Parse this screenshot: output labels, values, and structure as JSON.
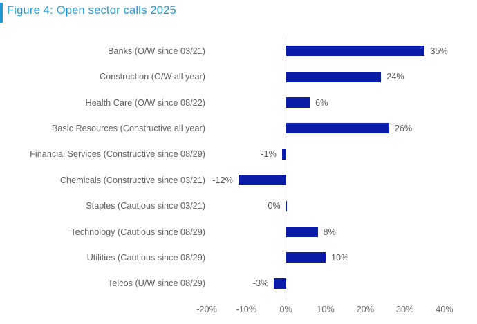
{
  "title": "Figure 4: Open sector calls 2025",
  "colors": {
    "accent": "#1E9CD9",
    "bar": "#0B1DA8",
    "label_text": "#5F6164",
    "value_text": "#55585B",
    "tick_text": "#66686B",
    "axis_line": "#D9D9D9"
  },
  "chart_data": {
    "type": "bar",
    "orientation": "horizontal",
    "title": "Figure 4: Open sector calls 2025",
    "categories": [
      "Banks (O/W since 03/21)",
      "Construction (O/W all year)",
      "Health Care (O/W since 08/22)",
      "Basic Resources (Constructive all year)",
      "Financial Services (Constructive since 08/29)",
      "Chemicals (Constructive since 03/21)",
      "Staples (Cautious since 03/21)",
      "Technology (Cautious since 08/29)",
      "Utilities (Cautious since 08/29)",
      "Telcos (U/W since 08/29)"
    ],
    "values": [
      35,
      24,
      6,
      26,
      -1,
      -12,
      0,
      8,
      10,
      -3
    ],
    "value_labels": [
      "35%",
      "24%",
      "6%",
      "26%",
      "-1%",
      "-12%",
      "0%",
      "8%",
      "10%",
      "-3%"
    ],
    "x_ticks": [
      "-20%",
      "-10%",
      "0%",
      "10%",
      "20%",
      "30%",
      "40%"
    ],
    "x_tick_values": [
      -20,
      -10,
      0,
      10,
      20,
      30,
      40
    ],
    "xlim": [
      -20,
      40
    ],
    "grid": false,
    "legend_position": "none"
  }
}
